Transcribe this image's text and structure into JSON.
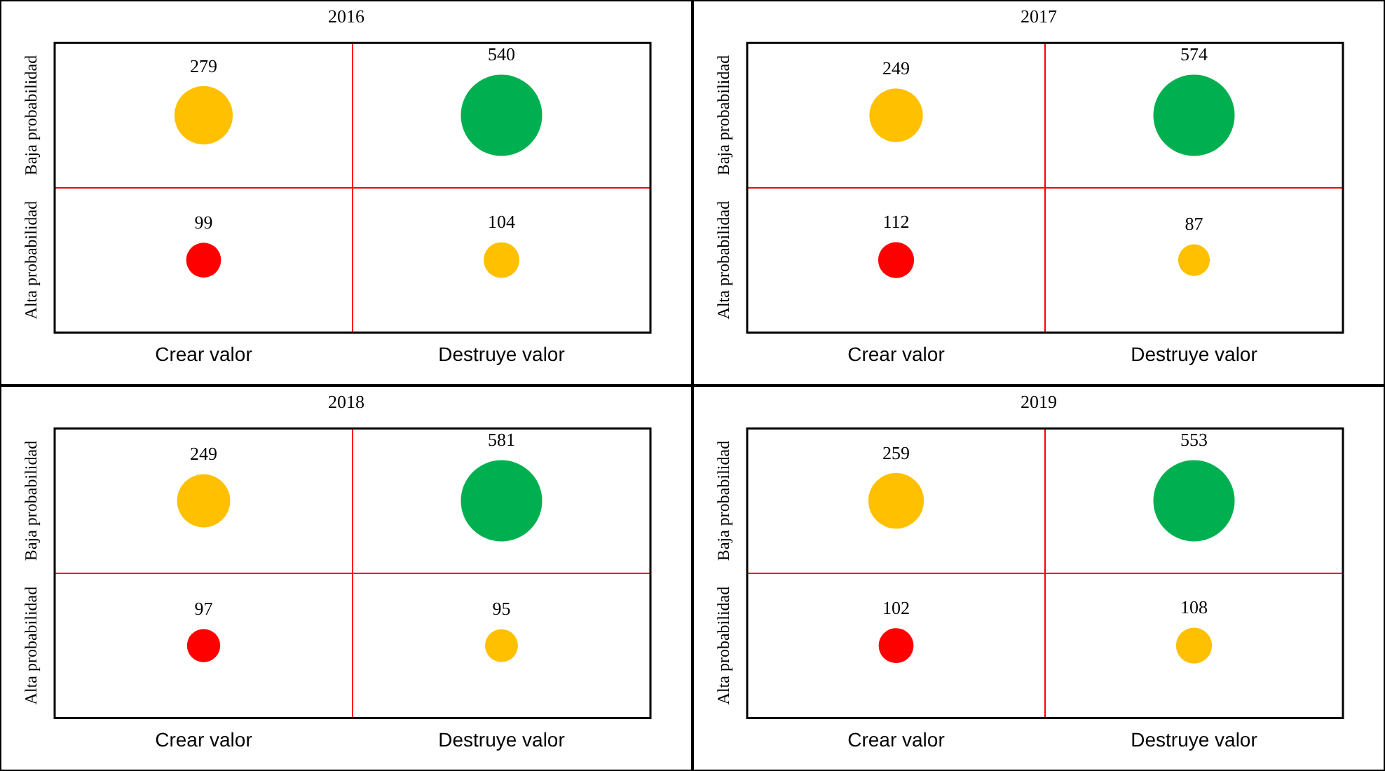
{
  "chart_data": [
    {
      "type": "other",
      "title": "2016",
      "categories": [
        "Crear valor",
        "Destruye valor"
      ],
      "data_labels": true,
      "series": [
        {
          "name": "Baja probabilidad",
          "colors": [
            "#ffc000",
            "#00b050"
          ],
          "values": [
            279,
            540
          ]
        },
        {
          "name": "Alta probabilidad",
          "colors": [
            "#ff0000",
            "#ffc000"
          ],
          "values": [
            99,
            104
          ]
        }
      ]
    },
    {
      "type": "other",
      "title": "2017",
      "categories": [
        "Crear valor",
        "Destruye valor"
      ],
      "data_labels": true,
      "series": [
        {
          "name": "Baja probabilidad",
          "colors": [
            "#ffc000",
            "#00b050"
          ],
          "values": [
            249,
            574
          ]
        },
        {
          "name": "Alta probabilidad",
          "colors": [
            "#ff0000",
            "#ffc000"
          ],
          "values": [
            112,
            87
          ]
        }
      ]
    },
    {
      "type": "other",
      "title": "2018",
      "categories": [
        "Crear valor",
        "Destruye valor"
      ],
      "data_labels": true,
      "series": [
        {
          "name": "Baja probabilidad",
          "colors": [
            "#ffc000",
            "#00b050"
          ],
          "values": [
            249,
            581
          ]
        },
        {
          "name": "Alta probabilidad",
          "colors": [
            "#ff0000",
            "#ffc000"
          ],
          "values": [
            97,
            95
          ]
        }
      ]
    },
    {
      "type": "other",
      "title": "2019",
      "categories": [
        "Crear valor",
        "Destruye valor"
      ],
      "data_labels": true,
      "series": [
        {
          "name": "Baja probabilidad",
          "colors": [
            "#ffc000",
            "#00b050"
          ],
          "values": [
            259,
            553
          ]
        },
        {
          "name": "Alta probabilidad",
          "colors": [
            "#ff0000",
            "#ffc000"
          ],
          "values": [
            102,
            108
          ]
        }
      ]
    }
  ]
}
